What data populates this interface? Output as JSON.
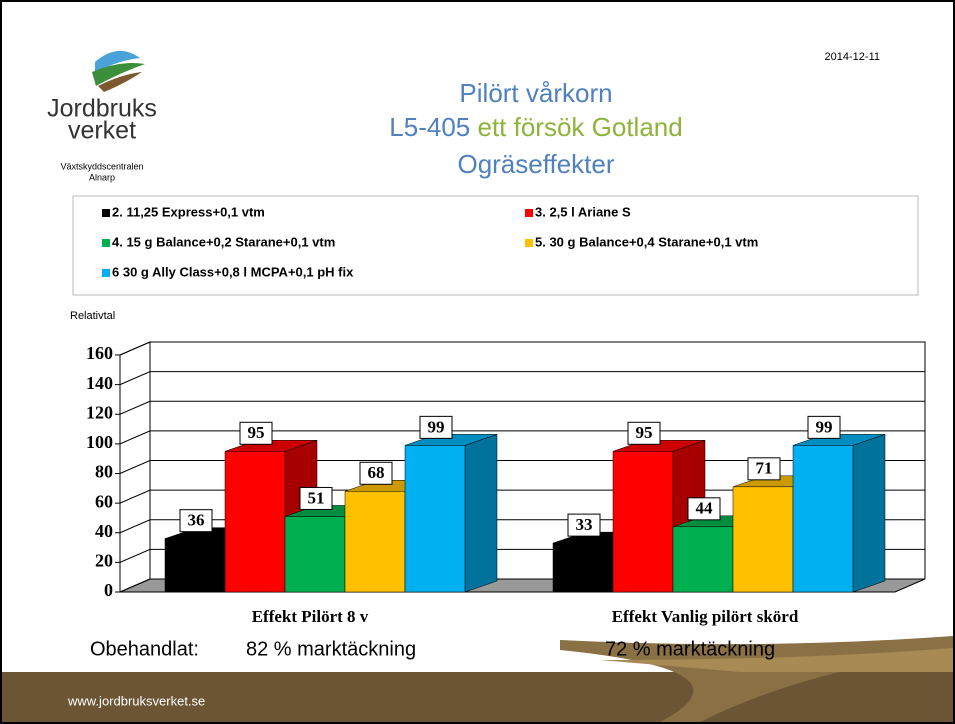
{
  "date": "2014-12-11",
  "logo": {
    "line1": "Jordbruks",
    "line2": "verket",
    "unit": "Växtskyddscentralen",
    "place": "Alnarp"
  },
  "footer": "www.jordbruksverket.se",
  "chart_data": {
    "type": "bar3d",
    "title": [
      {
        "text": "Pilört vårkorn",
        "color": "#4f81bd"
      },
      {
        "text": "L5-405",
        "color": "#4f81bd"
      },
      {
        "text": "ett försök Gotland",
        "color": "#8db33a"
      },
      {
        "text": "Ogräseffekter",
        "color": "#4f81bd"
      }
    ],
    "y_label": "Relativtal",
    "categories": [
      "Effekt Pilört 8 v",
      "Effekt Vanlig pilört skörd"
    ],
    "series": [
      {
        "name": "2. 11,25 Express+0,1 vtm",
        "color": "#000000",
        "values": [
          36,
          33
        ]
      },
      {
        "name": "3. 2,5 l Ariane S",
        "color": "#ff0000",
        "values": [
          95,
          95
        ]
      },
      {
        "name": "4. 15 g Balance+0,2 Starane+0,1 vtm",
        "color": "#00b050",
        "values": [
          51,
          44
        ]
      },
      {
        "name": "5. 30 g Balance+0,4 Starane+0,1 vtm",
        "color": "#ffc000",
        "values": [
          68,
          71
        ]
      },
      {
        "name": "6 30 g Ally Class+0,8 l MCPA+0,1 pH fix",
        "color": "#00b0f0",
        "values": [
          99,
          99
        ]
      }
    ],
    "ylim": [
      0,
      160
    ],
    "yticks": [
      0,
      20,
      40,
      60,
      80,
      100,
      120,
      140,
      160
    ],
    "grid": true,
    "annotations": [
      "Obehandlat:",
      "82 % marktäckning",
      "72 % marktäckning"
    ]
  }
}
